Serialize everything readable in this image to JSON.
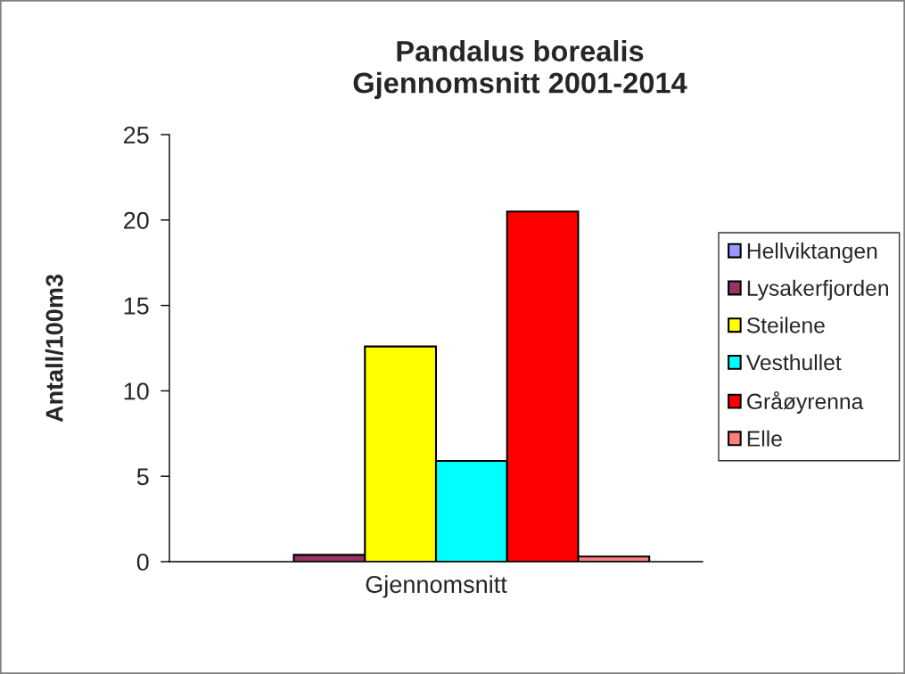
{
  "chart_data": {
    "type": "bar",
    "title": "Pandalus borealis\nGjennomsnitt 2001-2014",
    "ylabel": "Antall/100m3",
    "categories": [
      "Gjennomsnitt"
    ],
    "series": [
      {
        "name": "Hellviktangen",
        "color": "#9999ff",
        "values": [
          null
        ]
      },
      {
        "name": "Lysakerfjorden",
        "color": "#993366",
        "values": [
          0.4
        ]
      },
      {
        "name": "Steilene",
        "color": "#ffff00",
        "values": [
          12.6
        ]
      },
      {
        "name": "Vesthullet",
        "color": "#00ffff",
        "values": [
          5.9
        ]
      },
      {
        "name": "Gråøyrenna",
        "color": "#ff0000",
        "values": [
          20.5
        ]
      },
      {
        "name": "Elle",
        "color": "#ff8080",
        "values": [
          0.3
        ]
      }
    ],
    "ylim": [
      0,
      25
    ],
    "yticks": [
      0,
      5,
      10,
      15,
      20,
      25
    ],
    "grid": false,
    "legend": "right"
  }
}
